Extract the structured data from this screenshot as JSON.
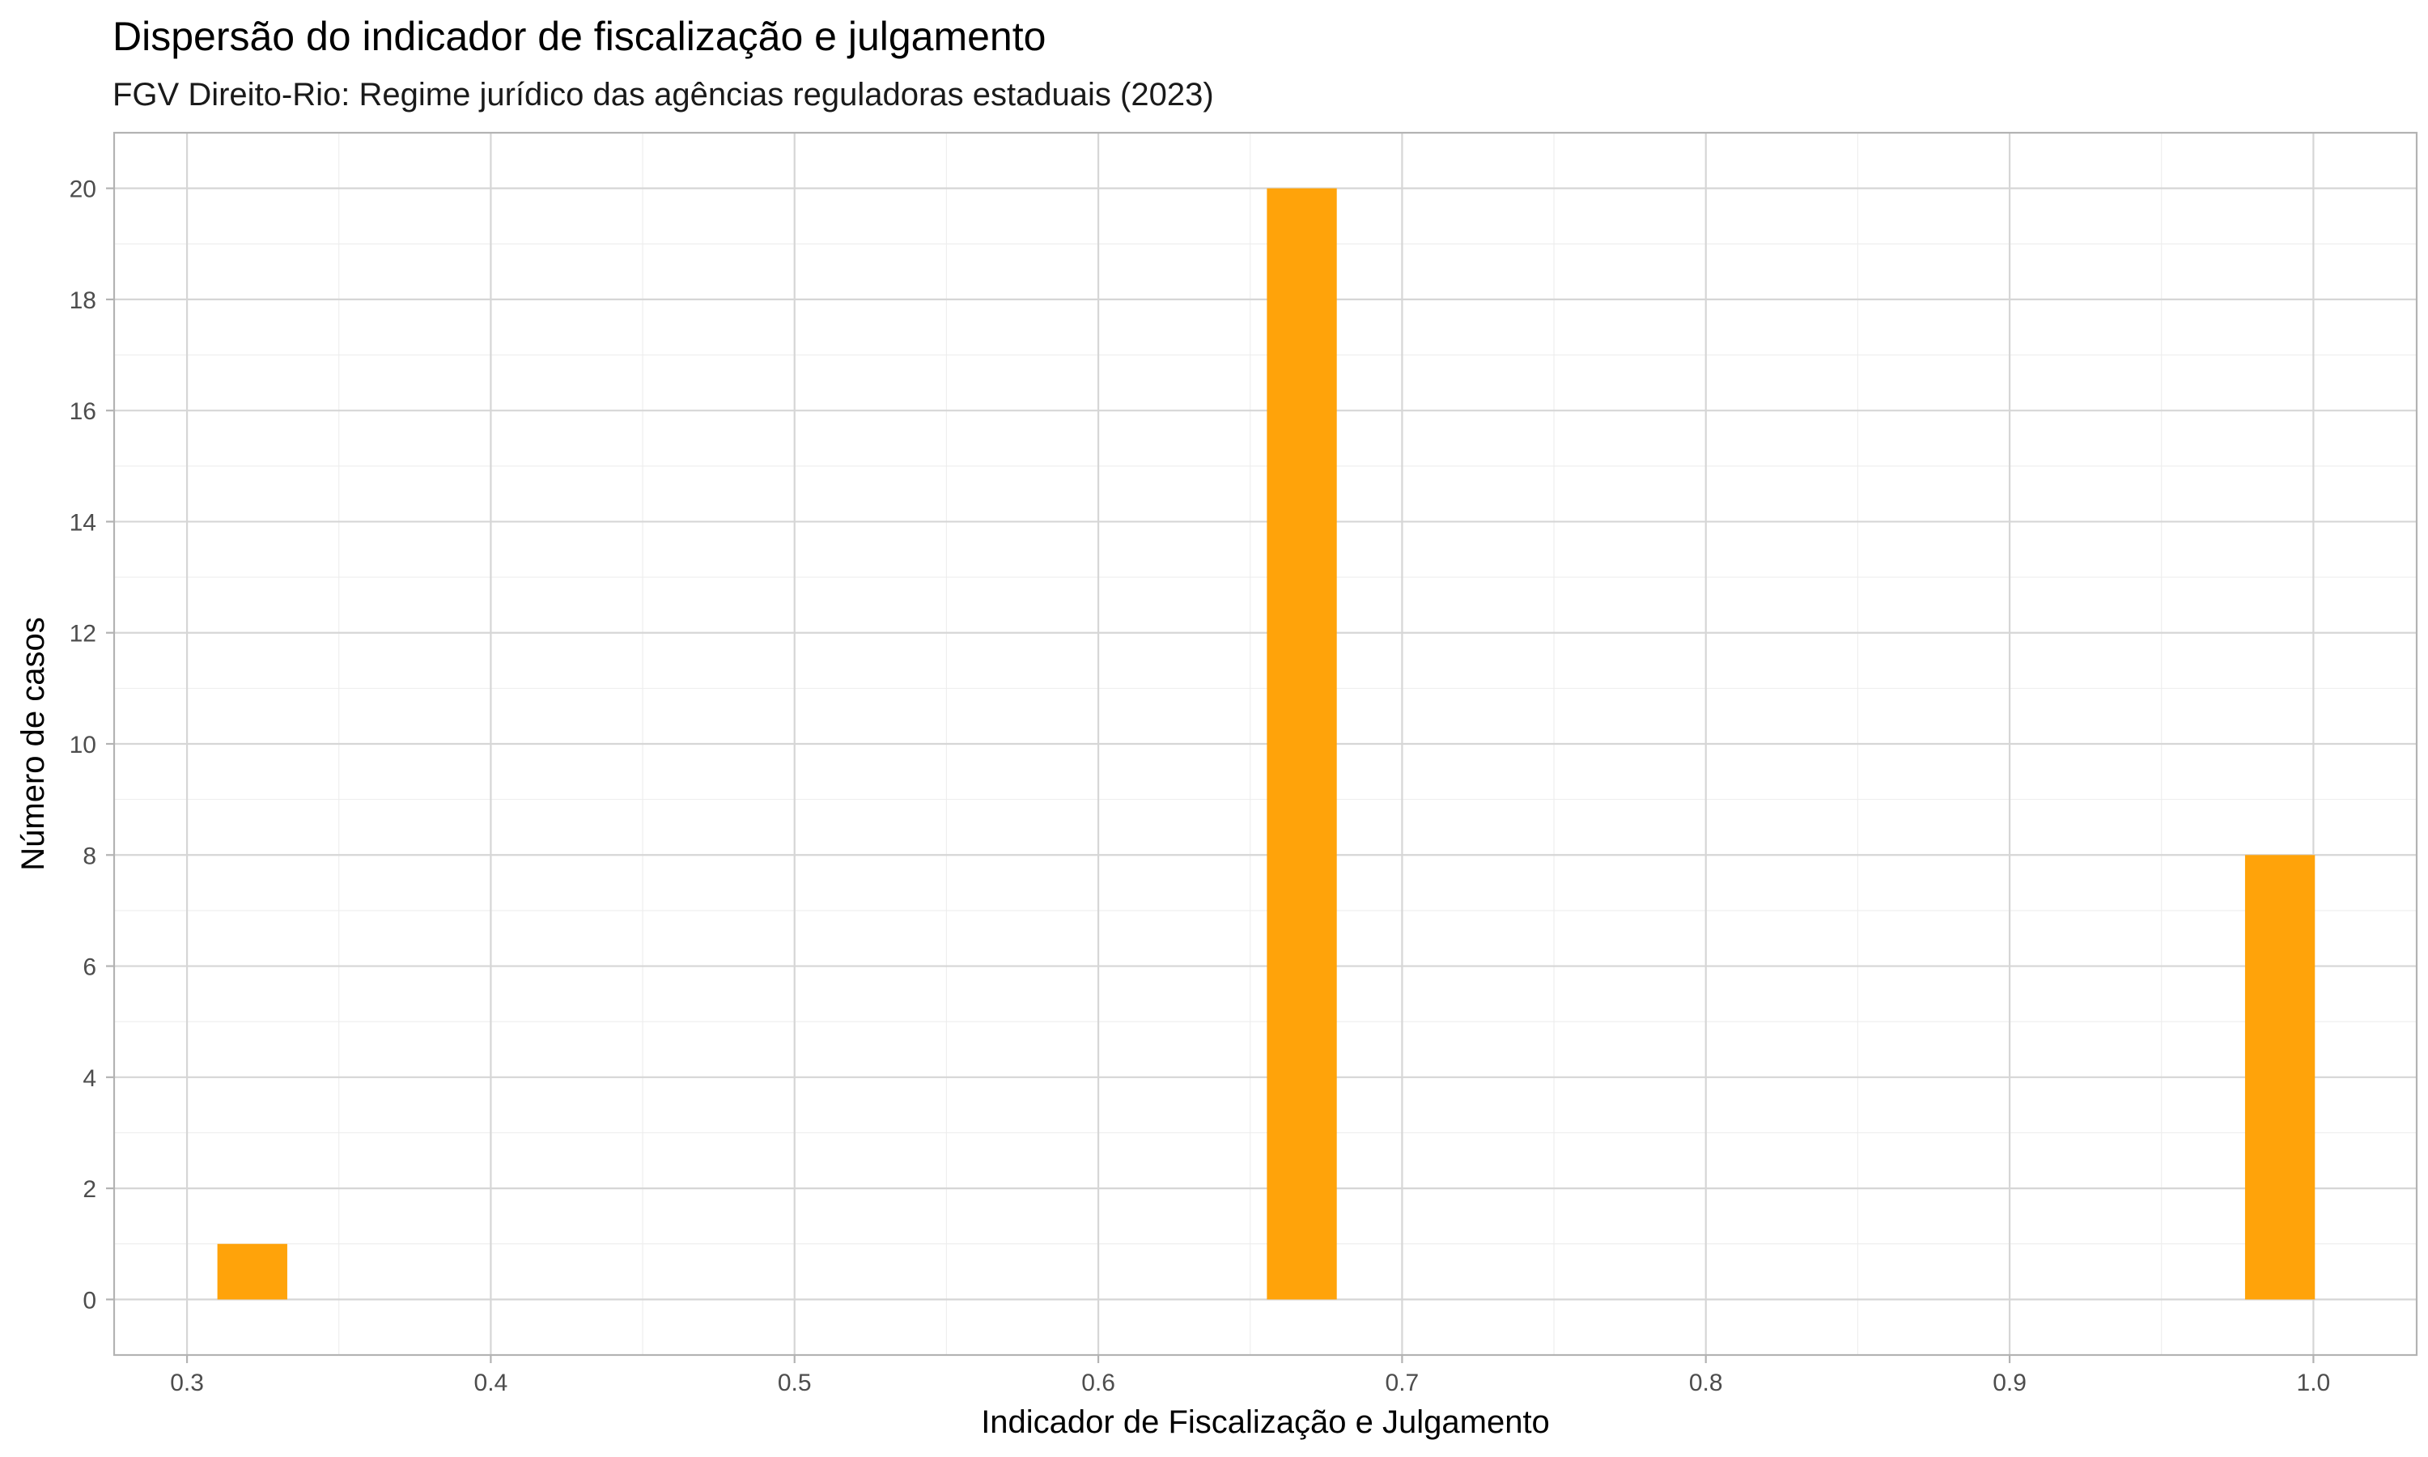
{
  "chart_data": {
    "type": "bar",
    "title": "Dispersão do indicador de fiscalização e julgamento",
    "subtitle": "FGV Direito-Rio: Regime jurídico das agências reguladoras estaduais (2023)",
    "xlabel": "Indicador de Fiscalização e Julgamento",
    "ylabel": "Número de casos",
    "xlim": [
      0.276,
      1.034
    ],
    "ylim": [
      -1,
      21
    ],
    "x_ticks": [
      "0.3",
      "0.4",
      "0.5",
      "0.6",
      "0.7",
      "0.8",
      "0.9",
      "1.0"
    ],
    "y_ticks": [
      "0",
      "2",
      "4",
      "6",
      "8",
      "10",
      "12",
      "14",
      "16",
      "18",
      "20"
    ],
    "bins": [
      {
        "x": 0.3215,
        "value": 1
      },
      {
        "x": 0.667,
        "value": 20
      },
      {
        "x": 0.989,
        "value": 8
      }
    ],
    "bin_width": 0.023,
    "grid": true,
    "bar_color": "#FFA30A"
  }
}
